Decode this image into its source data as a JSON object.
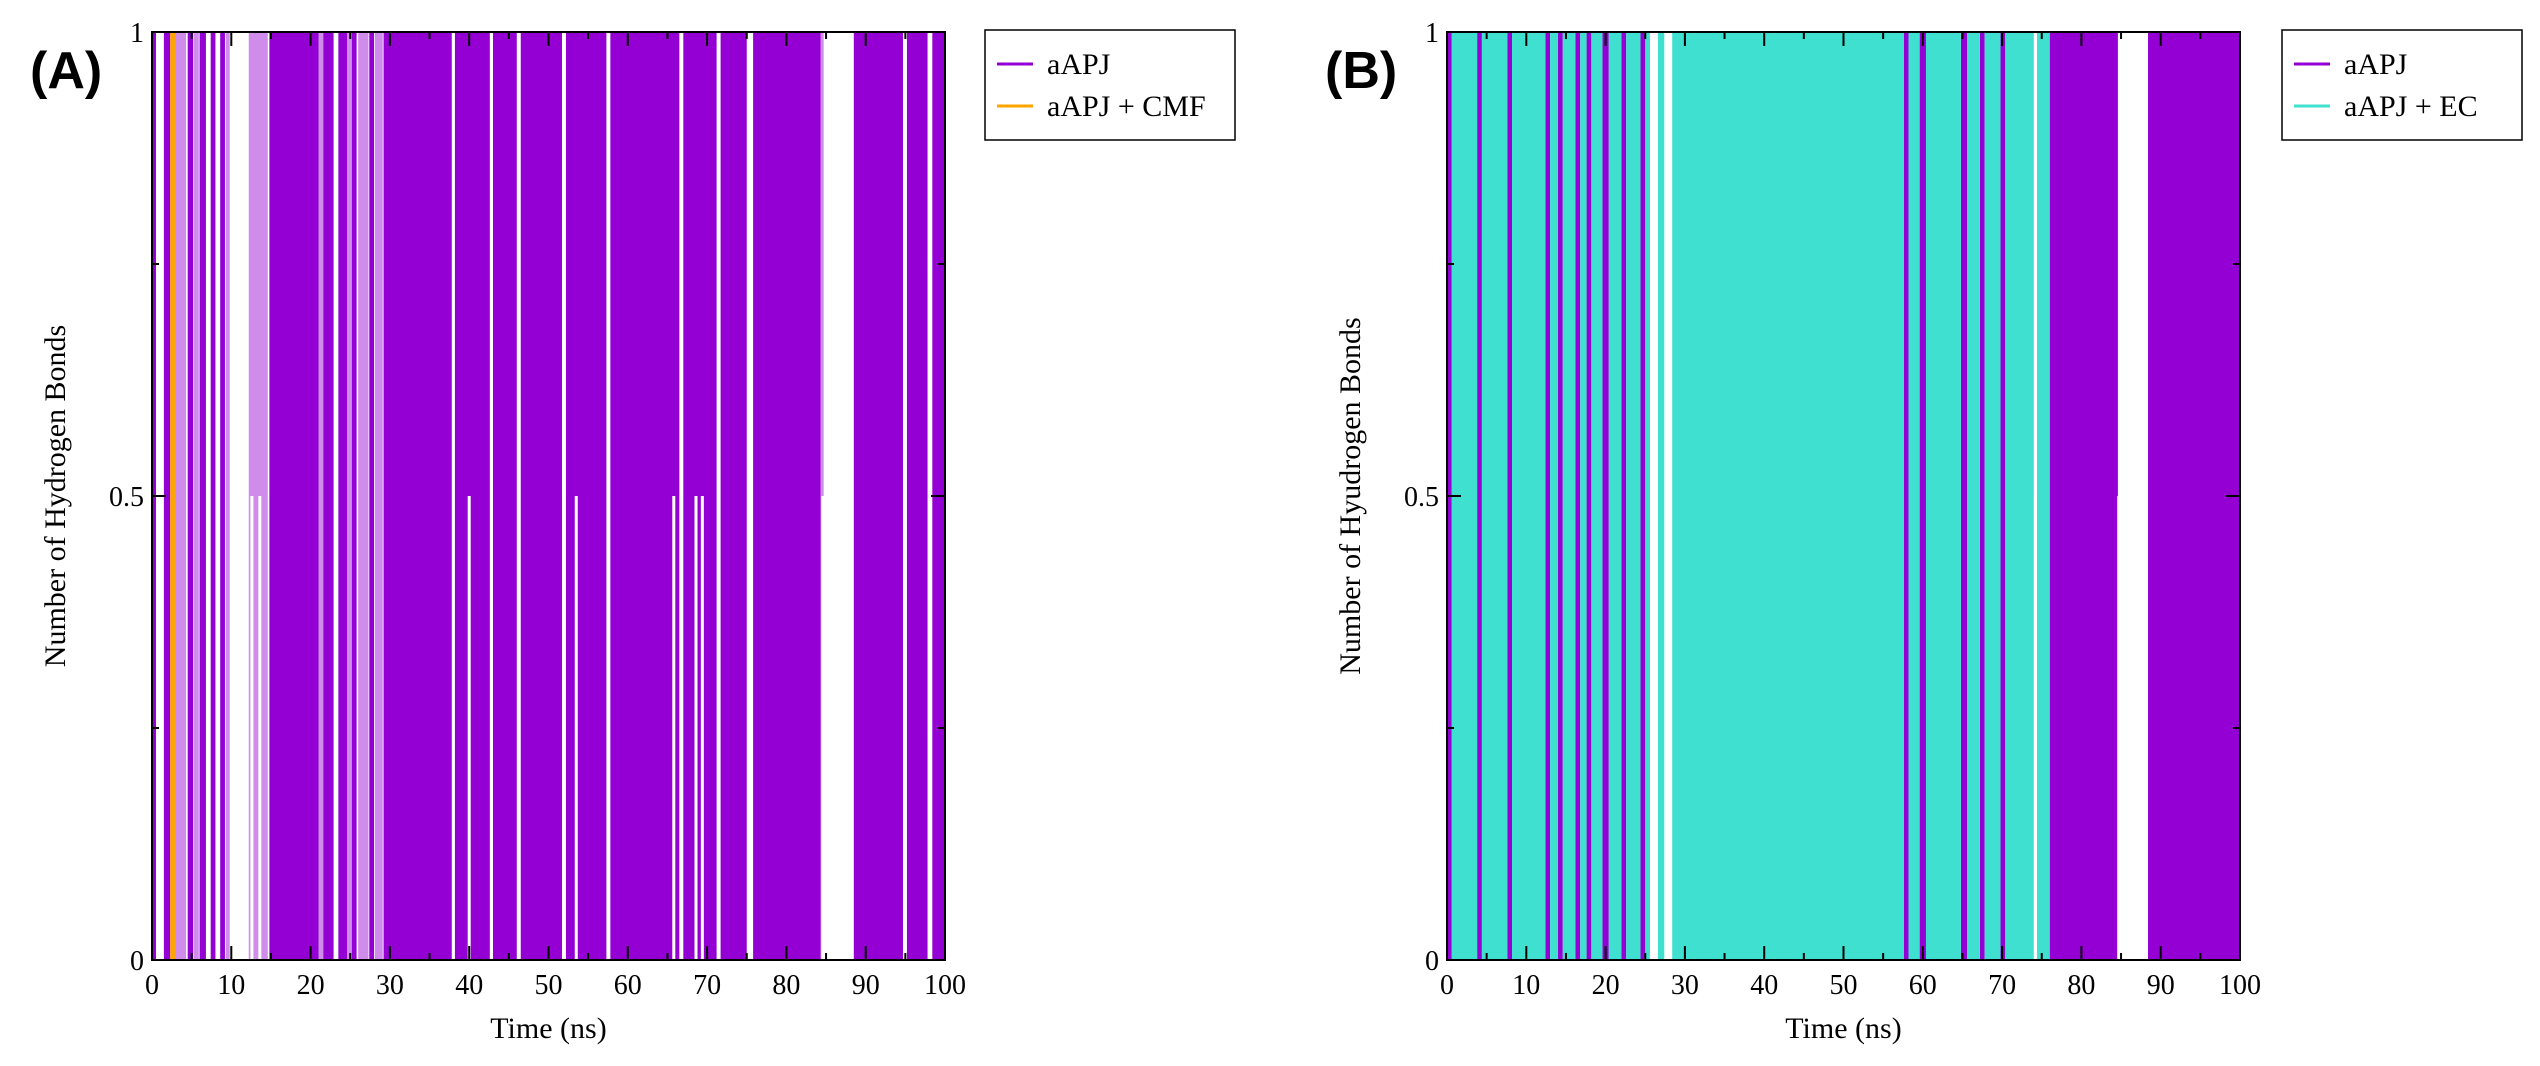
{
  "chart_data": [
    {
      "type": "line",
      "panel_label": "(A)",
      "xlabel": "Time (ns)",
      "ylabel": "Number of Hydrogen Bonds",
      "xlim": [
        0,
        100
      ],
      "ylim": [
        0,
        1
      ],
      "x_ticks": [
        "0",
        "10",
        "20",
        "30",
        "40",
        "50",
        "60",
        "70",
        "80",
        "90",
        "100"
      ],
      "y_ticks": [
        "0",
        "0.5",
        "1"
      ],
      "legend_position": "top-right",
      "series": [
        {
          "name": "aAPJ",
          "color": "#9400d3",
          "segments_value_1_ns": [
            [
              0,
              0.5
            ],
            [
              1.5,
              2.3
            ],
            [
              4.5,
              5.2
            ],
            [
              6.0,
              6.8
            ],
            [
              7.4,
              8.0
            ],
            [
              8.6,
              9.2
            ],
            [
              14.8,
              21.0
            ],
            [
              21.6,
              22.9
            ],
            [
              23.5,
              24.6
            ],
            [
              25.2,
              25.8
            ],
            [
              27.4,
              28.0
            ],
            [
              29.2,
              37.8
            ],
            [
              38.2,
              42.6
            ],
            [
              43.0,
              46.0
            ],
            [
              46.5,
              51.7
            ],
            [
              52.2,
              57.3
            ],
            [
              57.8,
              66.5
            ],
            [
              67.0,
              71.2
            ],
            [
              71.7,
              75.0
            ],
            [
              75.8,
              84.3
            ],
            [
              88.5,
              94.7
            ],
            [
              95.2,
              97.8
            ],
            [
              98.4,
              100
            ]
          ],
          "light_segments_value_1_ns": [
            [
              2.9,
              4.3
            ],
            [
              5.3,
              5.9
            ],
            [
              9.3,
              9.8
            ],
            [
              12.2,
              14.6
            ],
            [
              21.0,
              21.6
            ],
            [
              24.6,
              25.2
            ],
            [
              26.0,
              27.3
            ],
            [
              28.1,
              29.1
            ],
            [
              84.3,
              84.7
            ]
          ],
          "half_value_ticks_ns": [
            12.6,
            13.6,
            40.0,
            53.5,
            65.8,
            68.6,
            69.4,
            84.6
          ]
        },
        {
          "name": "aAPJ + CMF",
          "color": "#ffa500",
          "segments_value_1_ns": [
            [
              2.3,
              2.9
            ]
          ]
        }
      ]
    },
    {
      "type": "line",
      "panel_label": "(B)",
      "xlabel": "Time (ns)",
      "ylabel": "Number of Hyudrogen Bonds",
      "xlim": [
        0,
        100
      ],
      "ylim": [
        0,
        1
      ],
      "x_ticks": [
        "0",
        "10",
        "20",
        "30",
        "40",
        "50",
        "60",
        "70",
        "80",
        "90",
        "100"
      ],
      "y_ticks": [
        "0",
        "0.5",
        "1"
      ],
      "legend_position": "top-right",
      "series": [
        {
          "name": "aAPJ",
          "color": "#9400d3",
          "segments_value_1_ns": [
            [
              0,
              0.6
            ],
            [
              3.8,
              4.4
            ],
            [
              7.6,
              8.2
            ],
            [
              12.4,
              13.0
            ],
            [
              14.0,
              14.6
            ],
            [
              16.2,
              16.8
            ],
            [
              17.6,
              18.2
            ],
            [
              19.6,
              20.4
            ],
            [
              22.0,
              22.6
            ],
            [
              24.4,
              25.0
            ],
            [
              57.6,
              58.2
            ],
            [
              59.6,
              60.4
            ],
            [
              64.8,
              65.6
            ],
            [
              67.2,
              67.8
            ],
            [
              69.8,
              70.4
            ],
            [
              76.0,
              84.6
            ],
            [
              88.4,
              100
            ]
          ],
          "half_value_ticks_ns": [
            84.7
          ]
        },
        {
          "name": "aAPJ + EC",
          "color": "#40e0d0",
          "segments_value_1_ns": [
            [
              0.6,
              3.8
            ],
            [
              4.4,
              7.6
            ],
            [
              8.2,
              12.4
            ],
            [
              13.0,
              14.0
            ],
            [
              14.6,
              16.2
            ],
            [
              16.8,
              17.6
            ],
            [
              18.2,
              19.6
            ],
            [
              20.4,
              22.0
            ],
            [
              22.6,
              24.4
            ],
            [
              25.0,
              25.6
            ],
            [
              26.6,
              27.4
            ],
            [
              28.4,
              57.6
            ],
            [
              58.2,
              59.6
            ],
            [
              60.4,
              64.8
            ],
            [
              65.6,
              67.2
            ],
            [
              67.8,
              69.8
            ],
            [
              70.4,
              74.0
            ],
            [
              74.4,
              76.0
            ]
          ],
          "half_value_ticks_ns": [
            26.2,
            74.2
          ]
        }
      ]
    }
  ]
}
